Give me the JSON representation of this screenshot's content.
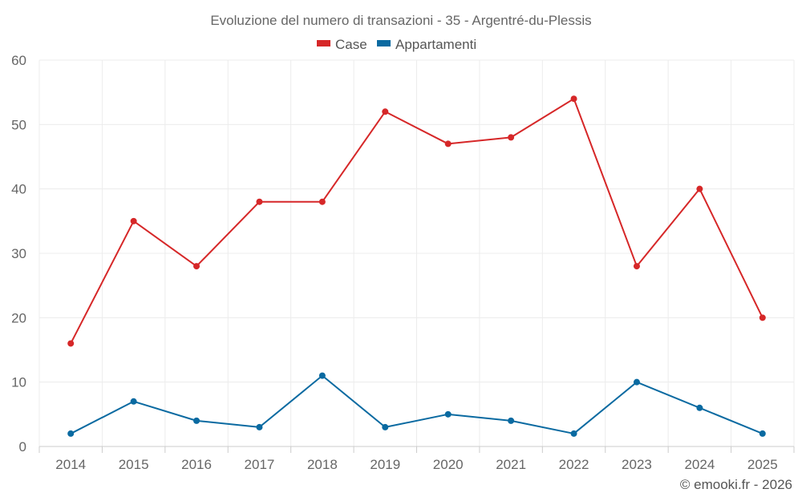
{
  "chart_data": {
    "type": "line",
    "title": "Evoluzione del numero di transazioni - 35 - Argentré-du-Plessis",
    "categories": [
      "2014",
      "2015",
      "2016",
      "2017",
      "2018",
      "2019",
      "2020",
      "2021",
      "2022",
      "2023",
      "2024",
      "2025"
    ],
    "series": [
      {
        "name": "Case",
        "color": "#d62728",
        "values": [
          16,
          35,
          28,
          38,
          38,
          52,
          47,
          48,
          54,
          28,
          40,
          20
        ]
      },
      {
        "name": "Appartamenti",
        "color": "#0a6aa1",
        "values": [
          2,
          7,
          4,
          3,
          11,
          3,
          5,
          4,
          2,
          10,
          6,
          2
        ]
      }
    ],
    "ylim": [
      0,
      60
    ],
    "yticks": [
      0,
      10,
      20,
      30,
      40,
      50,
      60
    ],
    "xlabel": "",
    "ylabel": "",
    "legend": "top-center",
    "grid": true
  },
  "credit": "© emooki.fr - 2026"
}
